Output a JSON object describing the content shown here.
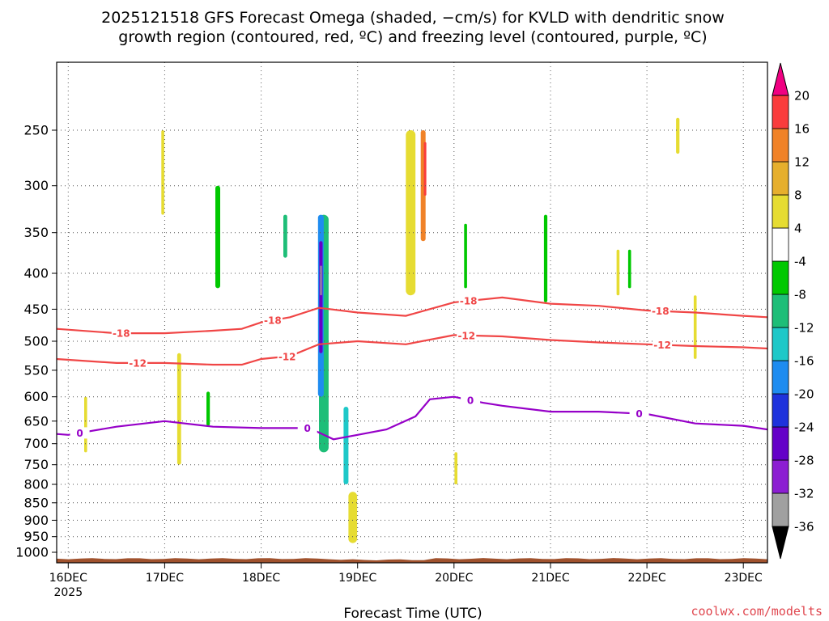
{
  "chart_data": {
    "type": "heatmap",
    "title_lines": [
      "2025121518 GFS Forecast Omega (shaded, −cm/s) for KVLD with dendritic snow",
      "growth region (contoured, red, ºC) and freezing level (contoured, purple, ºC)"
    ],
    "xlabel": "Forecast Time (UTC)",
    "ylabel": "",
    "credit": "coolwx.com/modelts",
    "x_ticks": [
      {
        "t": 0.0,
        "label": "16DEC",
        "sub": "2025"
      },
      {
        "t": 1.0,
        "label": "17DEC",
        "sub": ""
      },
      {
        "t": 2.0,
        "label": "18DEC",
        "sub": ""
      },
      {
        "t": 3.0,
        "label": "19DEC",
        "sub": ""
      },
      {
        "t": 4.0,
        "label": "20DEC",
        "sub": ""
      },
      {
        "t": 5.0,
        "label": "21DEC",
        "sub": ""
      },
      {
        "t": 6.0,
        "label": "22DEC",
        "sub": ""
      },
      {
        "t": 7.0,
        "label": "23DEC",
        "sub": ""
      }
    ],
    "xlim": [
      -0.12,
      7.25
    ],
    "y_axis": "log-pressure (hPa)",
    "ylim": [
      200,
      1035
    ],
    "y_ticks": [
      250,
      300,
      350,
      400,
      450,
      500,
      550,
      600,
      650,
      700,
      750,
      800,
      850,
      900,
      950,
      1000
    ],
    "colorbar": {
      "levels": [
        -36,
        -32,
        -28,
        -24,
        -20,
        -16,
        -12,
        -8,
        -4,
        4,
        8,
        12,
        16,
        20
      ],
      "colors": [
        "#000000",
        "#a0a0a0",
        "#8c1ed2",
        "#6400c8",
        "#1e32dc",
        "#1e8cf0",
        "#1ec8c8",
        "#1ebe78",
        "#00c800",
        "#ffffff",
        "#e6dc32",
        "#e6af2d",
        "#f08228",
        "#fa3c3c",
        "#f00082"
      ]
    },
    "omega_features": [
      {
        "t": 2.65,
        "p0": 330,
        "p1": 720,
        "w": 0.1,
        "v": -10
      },
      {
        "t": 2.62,
        "p0": 330,
        "p1": 600,
        "w": 0.06,
        "v": -18
      },
      {
        "t": 2.62,
        "p0": 360,
        "p1": 520,
        "w": 0.035,
        "v": -25
      },
      {
        "t": 2.62,
        "p0": 390,
        "p1": 430,
        "w": 0.015,
        "v": -34
      },
      {
        "t": 2.88,
        "p0": 620,
        "p1": 800,
        "w": 0.05,
        "v": -14
      },
      {
        "t": 2.95,
        "p0": 840,
        "p1": 920,
        "w": 0.06,
        "v": 14
      },
      {
        "t": 2.95,
        "p0": 860,
        "p1": 905,
        "w": 0.03,
        "v": 20
      },
      {
        "t": 2.95,
        "p0": 820,
        "p1": 970,
        "w": 0.09,
        "v": 5
      },
      {
        "t": 3.55,
        "p0": 250,
        "p1": 430,
        "w": 0.1,
        "v": 6
      },
      {
        "t": 3.68,
        "p0": 250,
        "p1": 360,
        "w": 0.05,
        "v": 12
      },
      {
        "t": 3.7,
        "p0": 260,
        "p1": 310,
        "w": 0.025,
        "v": 17
      },
      {
        "t": 1.45,
        "p0": 590,
        "p1": 660,
        "w": 0.035,
        "v": -5
      },
      {
        "t": 1.55,
        "p0": 300,
        "p1": 420,
        "w": 0.05,
        "v": -5
      },
      {
        "t": 1.15,
        "p0": 520,
        "p1": 750,
        "w": 0.04,
        "v": 5
      },
      {
        "t": 0.98,
        "p0": 250,
        "p1": 330,
        "w": 0.03,
        "v": 5
      },
      {
        "t": 4.12,
        "p0": 340,
        "p1": 420,
        "w": 0.03,
        "v": -5
      },
      {
        "t": 4.95,
        "p0": 330,
        "p1": 440,
        "w": 0.035,
        "v": -5
      },
      {
        "t": 5.7,
        "p0": 370,
        "p1": 430,
        "w": 0.03,
        "v": 5
      },
      {
        "t": 6.32,
        "p0": 240,
        "p1": 270,
        "w": 0.035,
        "v": 6
      },
      {
        "t": 6.5,
        "p0": 430,
        "p1": 530,
        "w": 0.03,
        "v": 6
      },
      {
        "t": 4.02,
        "p0": 720,
        "p1": 800,
        "w": 0.03,
        "v": 5
      },
      {
        "t": 0.18,
        "p0": 600,
        "p1": 720,
        "w": 0.03,
        "v": 5
      },
      {
        "t": 5.82,
        "p0": 370,
        "p1": 420,
        "w": 0.03,
        "v": -5
      },
      {
        "t": 2.25,
        "p0": 330,
        "p1": 380,
        "w": 0.04,
        "v": -9
      }
    ],
    "contours": [
      {
        "name": "-18",
        "color": "#f04646",
        "label": "-18",
        "label_t": [
          0.55,
          2.12,
          4.15,
          6.14
        ],
        "t": [
          -0.12,
          0.5,
          1.0,
          1.5,
          1.8,
          2.0,
          2.3,
          2.6,
          3.0,
          3.5,
          4.0,
          4.5,
          5.0,
          5.5,
          6.0,
          6.5,
          7.0,
          7.25
        ],
        "p": [
          480,
          487,
          487,
          483,
          480,
          470,
          462,
          448,
          455,
          460,
          440,
          433,
          442,
          445,
          452,
          455,
          460,
          462
        ]
      },
      {
        "name": "-12",
        "color": "#f04646",
        "label": "-12",
        "label_t": [
          0.72,
          2.27,
          4.13,
          6.16
        ],
        "t": [
          -0.12,
          0.5,
          1.0,
          1.5,
          1.8,
          2.0,
          2.3,
          2.6,
          3.0,
          3.5,
          4.0,
          4.5,
          5.0,
          5.5,
          6.0,
          6.5,
          7.0,
          7.25
        ],
        "p": [
          530,
          537,
          537,
          540,
          540,
          530,
          525,
          505,
          500,
          505,
          490,
          492,
          498,
          502,
          505,
          508,
          510,
          512
        ]
      },
      {
        "name": "0",
        "color": "#9600c8",
        "label": "0",
        "label_t": [
          0.12,
          2.48,
          4.17,
          5.92
        ],
        "t": [
          -0.12,
          0.0,
          0.5,
          1.0,
          1.5,
          2.0,
          2.5,
          2.75,
          3.0,
          3.3,
          3.6,
          3.75,
          4.0,
          4.3,
          4.5,
          5.0,
          5.5,
          6.0,
          6.5,
          7.0,
          7.25
        ],
        "p": [
          678,
          680,
          662,
          650,
          662,
          665,
          665,
          690,
          680,
          668,
          640,
          605,
          600,
          612,
          618,
          630,
          630,
          635,
          655,
          660,
          668
        ]
      }
    ]
  }
}
